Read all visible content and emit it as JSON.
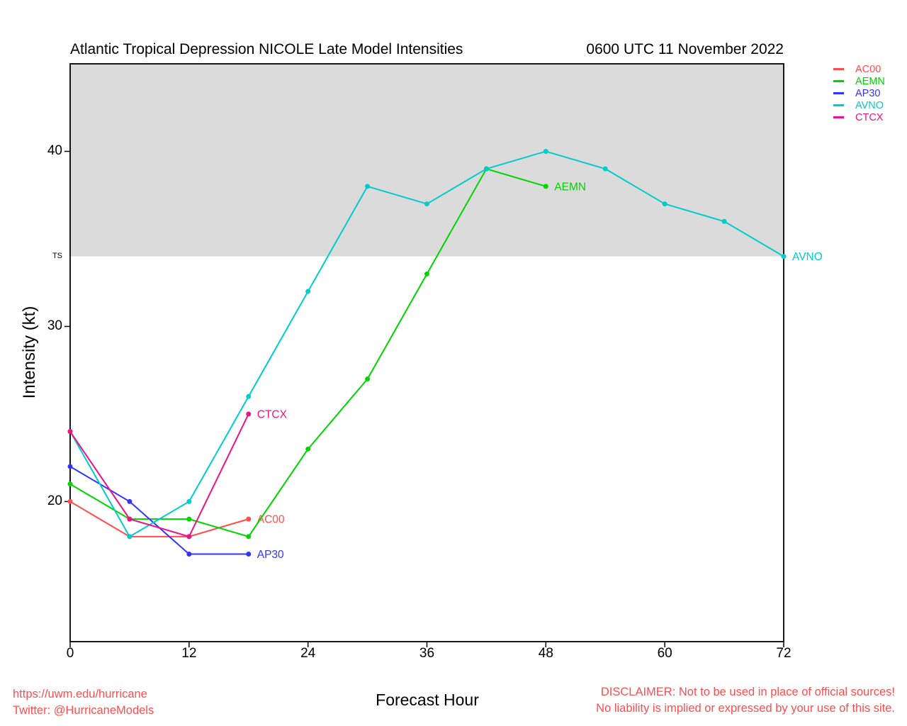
{
  "header": {
    "title": "Atlantic Tropical Depression NICOLE Late Model Intensities",
    "datetime": "0600 UTC 11 November 2022"
  },
  "footer": {
    "url": "https://uwm.edu/hurricane",
    "twitter": "Twitter: @HurricaneModels",
    "disclaimer1": "DISCLAIMER: Not to be used in place of official sources!",
    "disclaimer2": "No liability is implied or expressed by your use of this site.",
    "accent_color": "#FF4D4D"
  },
  "chart_data": {
    "type": "line",
    "title": "Atlantic Tropical Depression NICOLE Late Model Intensities",
    "subtitle": "0600 UTC 11 November 2022",
    "xlabel": "Forecast Hour",
    "ylabel": "Intensity (kt)",
    "xlim": [
      0,
      72
    ],
    "ylim": [
      12,
      45
    ],
    "grid": false,
    "legend_position": "top-right-outside",
    "x_ticks": [
      0,
      12,
      24,
      36,
      48,
      60,
      72
    ],
    "y_ticks": [
      {
        "value": 40,
        "label": "40"
      },
      {
        "value": 34,
        "label": "TS",
        "small": true,
        "tick": false
      },
      {
        "value": 30,
        "label": "30"
      },
      {
        "value": 20,
        "label": "20"
      }
    ],
    "shaded_region": {
      "from": 34,
      "to": 45,
      "color": "#DBDBDB",
      "meaning": "Tropical Storm intensity band (>= 34 kt)"
    },
    "series": [
      {
        "name": "AC00",
        "color": "#FF4D4D",
        "end_label": "AC00",
        "hours": [
          0,
          6,
          12,
          18
        ],
        "values": [
          20,
          18,
          18,
          19
        ]
      },
      {
        "name": "AEMN",
        "color": "#00D500",
        "end_label": "AEMN",
        "hours": [
          0,
          6,
          12,
          18,
          24,
          30,
          36,
          42,
          48
        ],
        "values": [
          21,
          19,
          19,
          18,
          23,
          27,
          33,
          39,
          38
        ]
      },
      {
        "name": "AP30",
        "color": "#3333FF",
        "end_label": "AP30",
        "hours": [
          0,
          6,
          12,
          18
        ],
        "values": [
          22,
          20,
          17,
          17
        ]
      },
      {
        "name": "AVNO",
        "color": "#00CCCC",
        "end_label": "AVNO",
        "hours": [
          0,
          6,
          12,
          18,
          24,
          30,
          36,
          42,
          48,
          54,
          60,
          66,
          72
        ],
        "values": [
          24,
          18,
          20,
          26,
          32,
          38,
          37,
          39,
          40,
          39,
          37,
          36,
          34
        ]
      },
      {
        "name": "CTCX",
        "color": "#EC1389",
        "end_label": "CTCX",
        "hours": [
          0,
          6,
          12,
          18
        ],
        "values": [
          24,
          19,
          18,
          25
        ]
      }
    ]
  }
}
